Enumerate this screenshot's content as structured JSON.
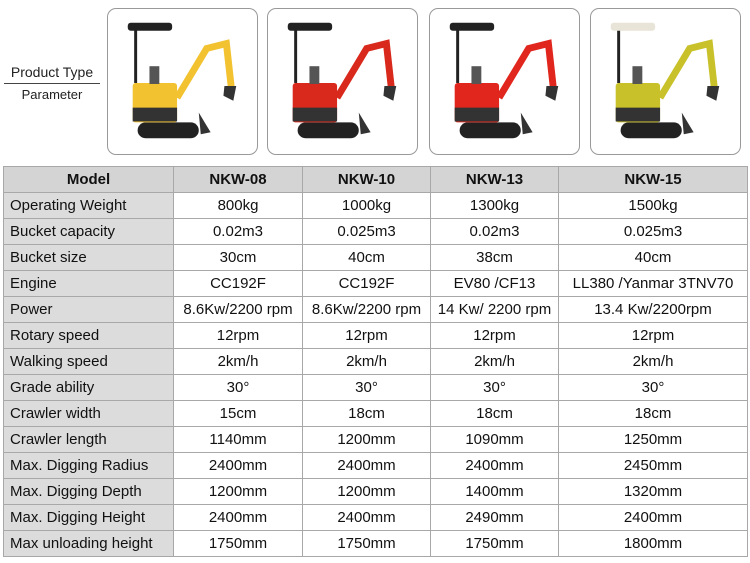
{
  "header": {
    "product_type": "Product Type",
    "parameter": "Parameter"
  },
  "images": [
    {
      "alt": "NKW-08 mini excavator",
      "color": "#f2c230"
    },
    {
      "alt": "NKW-10 mini excavator",
      "color": "#d9291c"
    },
    {
      "alt": "NKW-13 mini excavator",
      "color": "#e0261d"
    },
    {
      "alt": "NKW-15 mini excavator",
      "color": "#c9c12a"
    }
  ],
  "table": {
    "headers": [
      "Model",
      "NKW-08",
      "NKW-10",
      "NKW-13",
      "NKW-15"
    ],
    "rows": [
      [
        "Operating Weight",
        "800kg",
        "1000kg",
        "1300kg",
        "1500kg"
      ],
      [
        "Bucket capacity",
        "0.02m3",
        "0.025m3",
        "0.02m3",
        "0.025m3"
      ],
      [
        "Bucket size",
        "30cm",
        "40cm",
        "38cm",
        "40cm"
      ],
      [
        "Engine",
        "CC192F",
        "CC192F",
        "EV80 /CF13",
        "LL380 /Yanmar 3TNV70"
      ],
      [
        "Power",
        "8.6Kw/2200 rpm",
        "8.6Kw/2200 rpm",
        "14 Kw/ 2200 rpm",
        "13.4 Kw/2200rpm"
      ],
      [
        "Rotary speed",
        "12rpm",
        "12rpm",
        "12rpm",
        "12rpm"
      ],
      [
        "Walking speed",
        "2km/h",
        "2km/h",
        "2km/h",
        "2km/h"
      ],
      [
        "Grade ability",
        "30°",
        "30°",
        "30°",
        "30°"
      ],
      [
        "Crawler width",
        "15cm",
        "18cm",
        "18cm",
        "18cm"
      ],
      [
        "Crawler length",
        "1140mm",
        "1200mm",
        "1090mm",
        "1250mm"
      ],
      [
        "Max. Digging Radius",
        "2400mm",
        "2400mm",
        "2400mm",
        "2450mm"
      ],
      [
        "Max. Digging Depth",
        "1200mm",
        "1200mm",
        "1400mm",
        "1320mm"
      ],
      [
        "Max. Digging Height",
        "2400mm",
        "2400mm",
        "2490mm",
        "2400mm"
      ],
      [
        "Max unloading height",
        "1750mm",
        "1750mm",
        "1750mm",
        "1800mm"
      ]
    ]
  }
}
